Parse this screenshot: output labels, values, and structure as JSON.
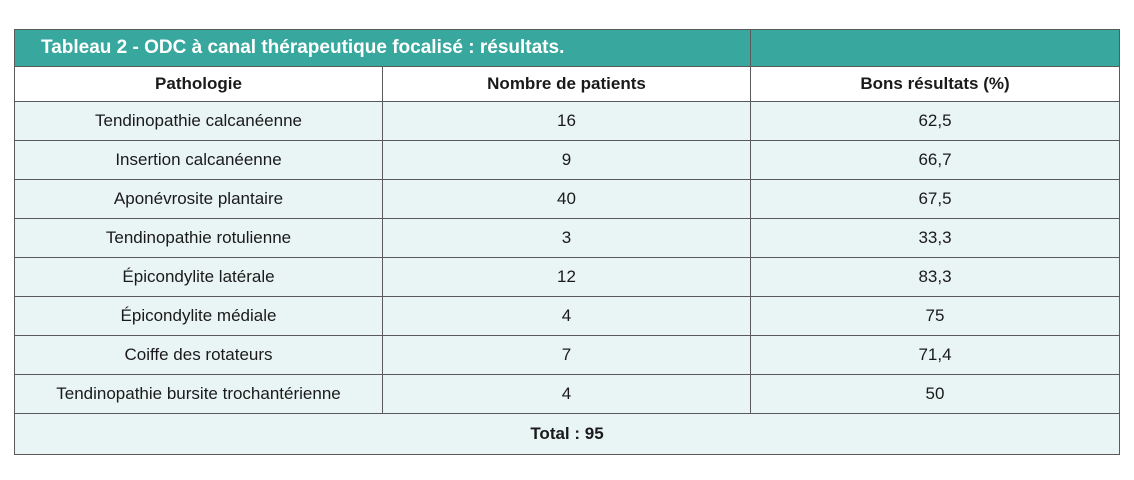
{
  "table": {
    "title": "Tableau 2 - ODC à canal thérapeutique focalisé : résultats.",
    "headers": [
      "Pathologie",
      "Nombre de patients",
      "Bons résultats (%)"
    ],
    "rows": [
      {
        "pathologie": "Tendinopathie calcanéenne",
        "patients": "16",
        "bons_resultats": "62,5"
      },
      {
        "pathologie": "Insertion calcanéenne",
        "patients": "9",
        "bons_resultats": "66,7"
      },
      {
        "pathologie": "Aponévrosite plantaire",
        "patients": "40",
        "bons_resultats": "67,5"
      },
      {
        "pathologie": "Tendinopathie rotulienne",
        "patients": "3",
        "bons_resultats": "33,3"
      },
      {
        "pathologie": "Épicondylite latérale",
        "patients": "12",
        "bons_resultats": "83,3"
      },
      {
        "pathologie": "Épicondylite médiale",
        "patients": "4",
        "bons_resultats": "75"
      },
      {
        "pathologie": "Coiffe des rotateurs",
        "patients": "7",
        "bons_resultats": "71,4"
      },
      {
        "pathologie": "Tendinopathie bursite trochantérienne",
        "patients": "4",
        "bons_resultats": "50"
      }
    ],
    "total": "Total : 95"
  },
  "colors": {
    "title_bg": "#38a79e",
    "row_bg": "#e9f5f4",
    "border": "#5a5a5a"
  }
}
